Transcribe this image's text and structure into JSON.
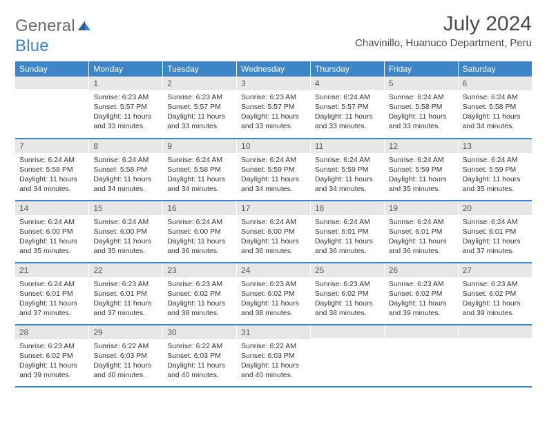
{
  "logo": {
    "word1": "General",
    "word2": "Blue"
  },
  "title": "July 2024",
  "location": "Chavinillo, Huanuco Department, Peru",
  "colors": {
    "header_bg": "#3d85c6",
    "header_text": "#ffffff",
    "daynum_bg": "#e7e7e7",
    "daynum_text": "#555555",
    "body_text": "#333333",
    "week_divider": "#3d85c6",
    "logo_gray": "#6a6a6a",
    "logo_blue": "#3d85c6",
    "page_bg": "#ffffff"
  },
  "weekdays": [
    "Sunday",
    "Monday",
    "Tuesday",
    "Wednesday",
    "Thursday",
    "Friday",
    "Saturday"
  ],
  "weeks": [
    [
      null,
      {
        "n": "1",
        "sunrise": "Sunrise: 6:23 AM",
        "sunset": "Sunset: 5:57 PM",
        "daylight": "Daylight: 11 hours and 33 minutes."
      },
      {
        "n": "2",
        "sunrise": "Sunrise: 6:23 AM",
        "sunset": "Sunset: 5:57 PM",
        "daylight": "Daylight: 11 hours and 33 minutes."
      },
      {
        "n": "3",
        "sunrise": "Sunrise: 6:23 AM",
        "sunset": "Sunset: 5:57 PM",
        "daylight": "Daylight: 11 hours and 33 minutes."
      },
      {
        "n": "4",
        "sunrise": "Sunrise: 6:24 AM",
        "sunset": "Sunset: 5:57 PM",
        "daylight": "Daylight: 11 hours and 33 minutes."
      },
      {
        "n": "5",
        "sunrise": "Sunrise: 6:24 AM",
        "sunset": "Sunset: 5:58 PM",
        "daylight": "Daylight: 11 hours and 33 minutes."
      },
      {
        "n": "6",
        "sunrise": "Sunrise: 6:24 AM",
        "sunset": "Sunset: 5:58 PM",
        "daylight": "Daylight: 11 hours and 34 minutes."
      }
    ],
    [
      {
        "n": "7",
        "sunrise": "Sunrise: 6:24 AM",
        "sunset": "Sunset: 5:58 PM",
        "daylight": "Daylight: 11 hours and 34 minutes."
      },
      {
        "n": "8",
        "sunrise": "Sunrise: 6:24 AM",
        "sunset": "Sunset: 5:58 PM",
        "daylight": "Daylight: 11 hours and 34 minutes."
      },
      {
        "n": "9",
        "sunrise": "Sunrise: 6:24 AM",
        "sunset": "Sunset: 5:58 PM",
        "daylight": "Daylight: 11 hours and 34 minutes."
      },
      {
        "n": "10",
        "sunrise": "Sunrise: 6:24 AM",
        "sunset": "Sunset: 5:59 PM",
        "daylight": "Daylight: 11 hours and 34 minutes."
      },
      {
        "n": "11",
        "sunrise": "Sunrise: 6:24 AM",
        "sunset": "Sunset: 5:59 PM",
        "daylight": "Daylight: 11 hours and 34 minutes."
      },
      {
        "n": "12",
        "sunrise": "Sunrise: 6:24 AM",
        "sunset": "Sunset: 5:59 PM",
        "daylight": "Daylight: 11 hours and 35 minutes."
      },
      {
        "n": "13",
        "sunrise": "Sunrise: 6:24 AM",
        "sunset": "Sunset: 5:59 PM",
        "daylight": "Daylight: 11 hours and 35 minutes."
      }
    ],
    [
      {
        "n": "14",
        "sunrise": "Sunrise: 6:24 AM",
        "sunset": "Sunset: 6:00 PM",
        "daylight": "Daylight: 11 hours and 35 minutes."
      },
      {
        "n": "15",
        "sunrise": "Sunrise: 6:24 AM",
        "sunset": "Sunset: 6:00 PM",
        "daylight": "Daylight: 11 hours and 35 minutes."
      },
      {
        "n": "16",
        "sunrise": "Sunrise: 6:24 AM",
        "sunset": "Sunset: 6:00 PM",
        "daylight": "Daylight: 11 hours and 36 minutes."
      },
      {
        "n": "17",
        "sunrise": "Sunrise: 6:24 AM",
        "sunset": "Sunset: 6:00 PM",
        "daylight": "Daylight: 11 hours and 36 minutes."
      },
      {
        "n": "18",
        "sunrise": "Sunrise: 6:24 AM",
        "sunset": "Sunset: 6:01 PM",
        "daylight": "Daylight: 11 hours and 36 minutes."
      },
      {
        "n": "19",
        "sunrise": "Sunrise: 6:24 AM",
        "sunset": "Sunset: 6:01 PM",
        "daylight": "Daylight: 11 hours and 36 minutes."
      },
      {
        "n": "20",
        "sunrise": "Sunrise: 6:24 AM",
        "sunset": "Sunset: 6:01 PM",
        "daylight": "Daylight: 11 hours and 37 minutes."
      }
    ],
    [
      {
        "n": "21",
        "sunrise": "Sunrise: 6:24 AM",
        "sunset": "Sunset: 6:01 PM",
        "daylight": "Daylight: 11 hours and 37 minutes."
      },
      {
        "n": "22",
        "sunrise": "Sunrise: 6:23 AM",
        "sunset": "Sunset: 6:01 PM",
        "daylight": "Daylight: 11 hours and 37 minutes."
      },
      {
        "n": "23",
        "sunrise": "Sunrise: 6:23 AM",
        "sunset": "Sunset: 6:02 PM",
        "daylight": "Daylight: 11 hours and 38 minutes."
      },
      {
        "n": "24",
        "sunrise": "Sunrise: 6:23 AM",
        "sunset": "Sunset: 6:02 PM",
        "daylight": "Daylight: 11 hours and 38 minutes."
      },
      {
        "n": "25",
        "sunrise": "Sunrise: 6:23 AM",
        "sunset": "Sunset: 6:02 PM",
        "daylight": "Daylight: 11 hours and 38 minutes."
      },
      {
        "n": "26",
        "sunrise": "Sunrise: 6:23 AM",
        "sunset": "Sunset: 6:02 PM",
        "daylight": "Daylight: 11 hours and 39 minutes."
      },
      {
        "n": "27",
        "sunrise": "Sunrise: 6:23 AM",
        "sunset": "Sunset: 6:02 PM",
        "daylight": "Daylight: 11 hours and 39 minutes."
      }
    ],
    [
      {
        "n": "28",
        "sunrise": "Sunrise: 6:23 AM",
        "sunset": "Sunset: 6:02 PM",
        "daylight": "Daylight: 11 hours and 39 minutes."
      },
      {
        "n": "29",
        "sunrise": "Sunrise: 6:22 AM",
        "sunset": "Sunset: 6:03 PM",
        "daylight": "Daylight: 11 hours and 40 minutes."
      },
      {
        "n": "30",
        "sunrise": "Sunrise: 6:22 AM",
        "sunset": "Sunset: 6:03 PM",
        "daylight": "Daylight: 11 hours and 40 minutes."
      },
      {
        "n": "31",
        "sunrise": "Sunrise: 6:22 AM",
        "sunset": "Sunset: 6:03 PM",
        "daylight": "Daylight: 11 hours and 40 minutes."
      },
      null,
      null,
      null
    ]
  ]
}
